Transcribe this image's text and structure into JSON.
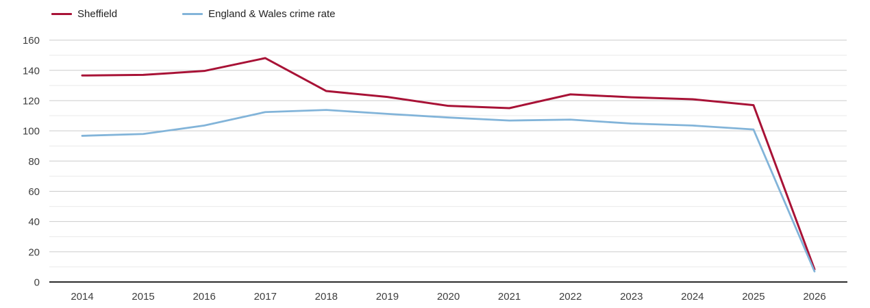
{
  "chart_data": {
    "type": "line",
    "title": "",
    "xlabel": "",
    "ylabel": "",
    "x": [
      2014,
      2015,
      2016,
      2017,
      2018,
      2019,
      2020,
      2021,
      2022,
      2023,
      2024,
      2025,
      2026
    ],
    "series": [
      {
        "name": "Sheffield",
        "color": "#a81236",
        "stroke_width": 3,
        "values": [
          136.6,
          137.0,
          139.6,
          148.1,
          126.3,
          122.4,
          116.5,
          115.0,
          124.1,
          122.2,
          120.9,
          117.0,
          8.4
        ]
      },
      {
        "name": "England & Wales crime rate",
        "color": "#82b4d9",
        "stroke_width": 2.8,
        "values": [
          96.7,
          97.9,
          103.5,
          112.4,
          113.8,
          111.2,
          108.8,
          106.8,
          107.4,
          104.8,
          103.5,
          100.9,
          7.0
        ]
      }
    ],
    "ylim": [
      0,
      160
    ],
    "ytick_step": 20,
    "minor_grid_step": 10,
    "grid": true,
    "legend_position": "top-left",
    "colors": {
      "axis": "#2b2b2b",
      "grid_major": "#cbcbcb",
      "grid_minor": "#e9e9e9",
      "tick_label": "#3d3d3d"
    }
  }
}
